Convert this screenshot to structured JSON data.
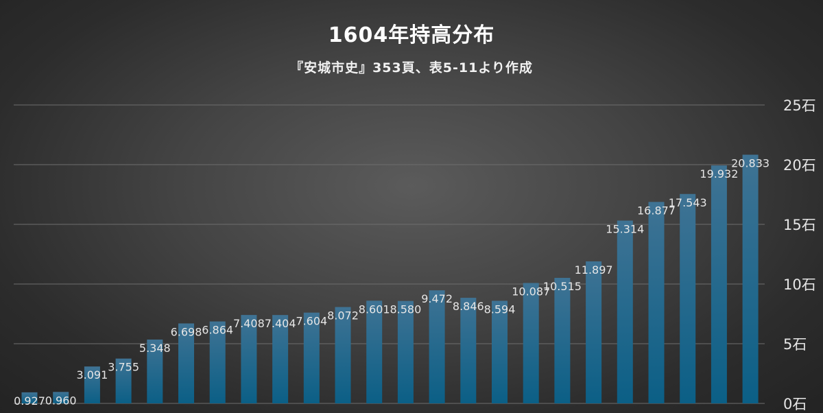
{
  "chart_data": {
    "type": "bar",
    "title": "1604年持高分布",
    "subtitle": "『安城市史』353頁、表5-11より作成",
    "categories": [
      "",
      "",
      "",
      "",
      "",
      "",
      "",
      "",
      "",
      "",
      "",
      "",
      "",
      "",
      "",
      "",
      "",
      "",
      "",
      "",
      "",
      "",
      "",
      ""
    ],
    "values": [
      0.927,
      0.96,
      3.091,
      3.755,
      5.348,
      6.698,
      6.864,
      7.408,
      7.404,
      7.604,
      8.072,
      8.601,
      8.58,
      9.472,
      8.846,
      8.594,
      10.087,
      10.515,
      11.897,
      15.314,
      16.877,
      17.543,
      19.932,
      20.833
    ],
    "value_labels": [
      "0.927",
      "0.960",
      "3.091",
      "3.755",
      "5.348",
      "6.698",
      "6.864",
      "7.408",
      "7.404",
      "7.604",
      "8.072",
      "8.601",
      "8.580",
      "9.472",
      "8.846",
      "8.594",
      "10.087",
      "10.515",
      "11.897",
      "15.314",
      "16.877",
      "17.543",
      "19.932",
      "20.833"
    ],
    "ylim": [
      0,
      25
    ],
    "y_ticks": [
      0,
      5,
      10,
      15,
      20,
      25
    ],
    "y_tick_labels": [
      "0石",
      "5石",
      "10石",
      "15石",
      "20石",
      "25石"
    ],
    "y_axis_position": "right",
    "grid": true,
    "legend": "none",
    "colors": {
      "bar_top": "#3f7394",
      "bar_bottom": "#0b5f86",
      "grid": "#6e6e6e",
      "label": "#e6e6e6",
      "background": "#3a3a3a"
    }
  }
}
